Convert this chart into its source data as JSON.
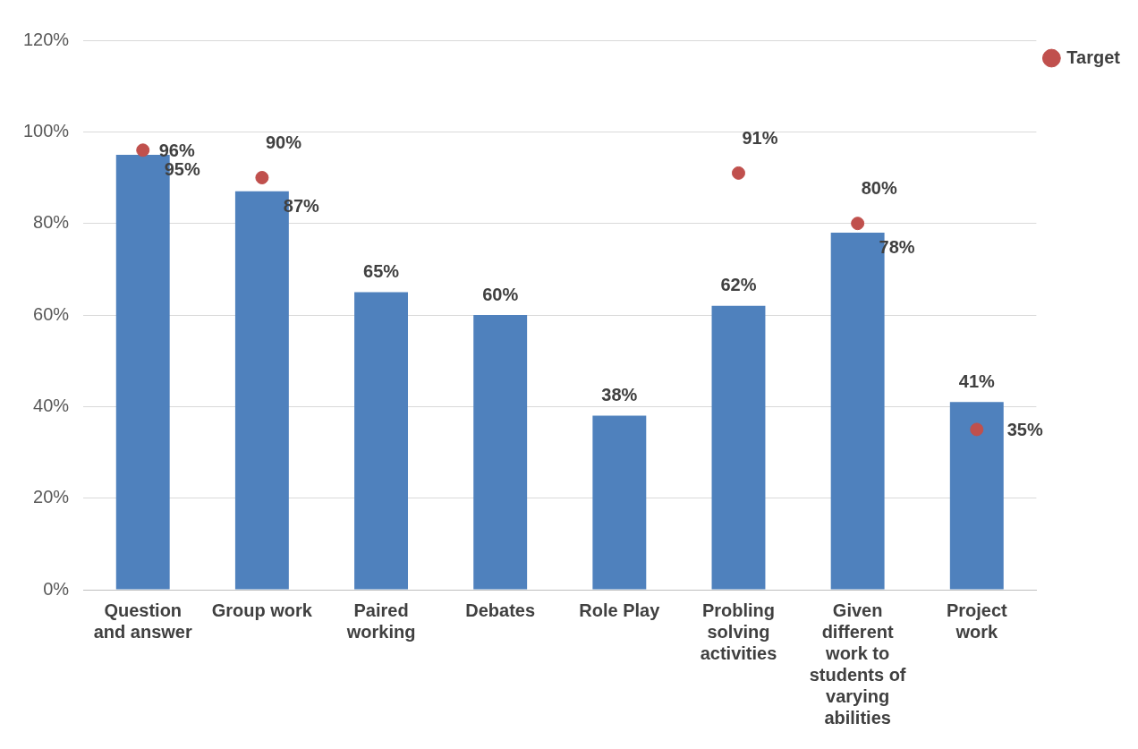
{
  "chart_data": {
    "type": "bar",
    "categories": [
      "Question and answer",
      "Group work",
      "Paired working",
      "Debates",
      "Role Play",
      "Probling solving activities",
      "Given different work to students of varying abilities",
      "Project work"
    ],
    "series": [
      {
        "color": "#4f81bd",
        "values": [
          95,
          87,
          65,
          60,
          38,
          62,
          78,
          41
        ],
        "value_labels": [
          "95%",
          "87%",
          "65%",
          "60%",
          "38%",
          "62%",
          "78%",
          "41%"
        ]
      },
      {
        "type": "scatter",
        "name": "Target",
        "color": "#c0504d",
        "values": [
          96,
          90,
          null,
          null,
          null,
          91,
          80,
          35
        ],
        "value_labels": [
          "96%",
          "90%",
          null,
          null,
          null,
          "91%",
          "80%",
          "35%"
        ]
      }
    ],
    "ylim": [
      0,
      120
    ],
    "yticks": [
      {
        "value": 0,
        "label": "0%"
      },
      {
        "value": 20,
        "label": "20%"
      },
      {
        "value": 40,
        "label": "40%"
      },
      {
        "value": 60,
        "label": "60%"
      },
      {
        "value": 80,
        "label": "80%"
      },
      {
        "value": 100,
        "label": "100%"
      },
      {
        "value": 120,
        "label": "120%"
      }
    ],
    "grid": "y",
    "legend": "top right",
    "marker": "circle"
  }
}
